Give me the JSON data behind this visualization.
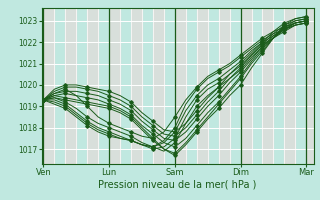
{
  "xlabel": "Pression niveau de la mer( hPa )",
  "bg_color": "#c0e8e0",
  "line_color": "#1a5c1a",
  "ylim": [
    1016.3,
    1023.6
  ],
  "yticks": [
    1017,
    1018,
    1019,
    1020,
    1021,
    1022,
    1023
  ],
  "xtick_labels": [
    "Ven",
    "Lun",
    "Sam",
    "Dim",
    "Mar"
  ],
  "xtick_positions": [
    0,
    36,
    72,
    108,
    144
  ],
  "vline_positions": [
    0,
    36,
    72,
    108,
    144
  ],
  "total_points": 145,
  "series": [
    {
      "start": 0,
      "points": [
        [
          0,
          1019.3
        ],
        [
          6,
          1019.5
        ],
        [
          12,
          1019.4
        ],
        [
          18,
          1019.3
        ],
        [
          24,
          1019.2
        ],
        [
          30,
          1019.1
        ],
        [
          36,
          1019.0
        ],
        [
          42,
          1018.8
        ],
        [
          48,
          1018.5
        ],
        [
          54,
          1018.0
        ],
        [
          60,
          1017.5
        ],
        [
          66,
          1017.0
        ],
        [
          72,
          1016.7
        ],
        [
          78,
          1017.2
        ],
        [
          84,
          1017.8
        ],
        [
          90,
          1018.4
        ],
        [
          96,
          1018.9
        ],
        [
          102,
          1019.5
        ],
        [
          108,
          1020.0
        ],
        [
          114,
          1020.8
        ],
        [
          120,
          1021.5
        ],
        [
          126,
          1022.2
        ],
        [
          132,
          1022.8
        ],
        [
          138,
          1023.0
        ],
        [
          144,
          1023.1
        ]
      ]
    },
    {
      "start": 0,
      "points": [
        [
          0,
          1019.3
        ],
        [
          6,
          1019.4
        ],
        [
          12,
          1019.3
        ],
        [
          18,
          1019.2
        ],
        [
          24,
          1019.1
        ],
        [
          30,
          1019.0
        ],
        [
          36,
          1018.9
        ],
        [
          42,
          1018.7
        ],
        [
          48,
          1018.4
        ],
        [
          54,
          1017.9
        ],
        [
          60,
          1017.4
        ],
        [
          66,
          1017.0
        ],
        [
          72,
          1016.8
        ],
        [
          78,
          1017.3
        ],
        [
          84,
          1017.9
        ],
        [
          90,
          1018.5
        ],
        [
          96,
          1019.1
        ],
        [
          102,
          1019.7
        ],
        [
          108,
          1020.3
        ],
        [
          114,
          1021.0
        ],
        [
          120,
          1021.6
        ],
        [
          126,
          1022.2
        ],
        [
          132,
          1022.7
        ],
        [
          138,
          1022.9
        ],
        [
          144,
          1023.0
        ]
      ]
    },
    {
      "start": 0,
      "points": [
        [
          0,
          1019.3
        ],
        [
          6,
          1019.5
        ],
        [
          12,
          1019.6
        ],
        [
          18,
          1019.5
        ],
        [
          24,
          1019.4
        ],
        [
          30,
          1019.3
        ],
        [
          36,
          1019.1
        ],
        [
          42,
          1018.9
        ],
        [
          48,
          1018.6
        ],
        [
          54,
          1018.1
        ],
        [
          60,
          1017.7
        ],
        [
          66,
          1017.3
        ],
        [
          72,
          1017.1
        ],
        [
          78,
          1017.5
        ],
        [
          84,
          1018.1
        ],
        [
          90,
          1018.7
        ],
        [
          96,
          1019.2
        ],
        [
          102,
          1019.8
        ],
        [
          108,
          1020.4
        ],
        [
          114,
          1021.1
        ],
        [
          120,
          1021.7
        ],
        [
          126,
          1022.2
        ],
        [
          132,
          1022.6
        ],
        [
          138,
          1022.9
        ],
        [
          144,
          1023.0
        ]
      ]
    },
    {
      "start": 0,
      "points": [
        [
          0,
          1019.3
        ],
        [
          6,
          1019.6
        ],
        [
          12,
          1019.7
        ],
        [
          18,
          1019.7
        ],
        [
          24,
          1019.6
        ],
        [
          30,
          1019.5
        ],
        [
          36,
          1019.3
        ],
        [
          42,
          1019.1
        ],
        [
          48,
          1018.8
        ],
        [
          54,
          1018.3
        ],
        [
          60,
          1017.9
        ],
        [
          66,
          1017.5
        ],
        [
          72,
          1017.4
        ],
        [
          78,
          1017.8
        ],
        [
          84,
          1018.4
        ],
        [
          90,
          1019.0
        ],
        [
          96,
          1019.5
        ],
        [
          102,
          1020.1
        ],
        [
          108,
          1020.6
        ],
        [
          114,
          1021.2
        ],
        [
          120,
          1021.8
        ],
        [
          126,
          1022.3
        ],
        [
          132,
          1022.7
        ],
        [
          138,
          1023.0
        ],
        [
          144,
          1023.1
        ]
      ]
    },
    {
      "start": 0,
      "points": [
        [
          0,
          1019.3
        ],
        [
          6,
          1019.7
        ],
        [
          12,
          1019.9
        ],
        [
          18,
          1019.9
        ],
        [
          24,
          1019.8
        ],
        [
          30,
          1019.7
        ],
        [
          36,
          1019.5
        ],
        [
          42,
          1019.3
        ],
        [
          48,
          1019.0
        ],
        [
          54,
          1018.5
        ],
        [
          60,
          1018.1
        ],
        [
          66,
          1017.7
        ],
        [
          72,
          1017.6
        ],
        [
          78,
          1018.0
        ],
        [
          84,
          1018.6
        ],
        [
          90,
          1019.2
        ],
        [
          96,
          1019.7
        ],
        [
          102,
          1020.3
        ],
        [
          108,
          1020.8
        ],
        [
          114,
          1021.4
        ],
        [
          120,
          1021.9
        ],
        [
          126,
          1022.4
        ],
        [
          132,
          1022.8
        ],
        [
          138,
          1023.1
        ],
        [
          144,
          1023.2
        ]
      ]
    },
    {
      "start": 0,
      "points": [
        [
          0,
          1019.3
        ],
        [
          6,
          1019.8
        ],
        [
          12,
          1020.0
        ],
        [
          18,
          1020.0
        ],
        [
          24,
          1019.9
        ],
        [
          30,
          1019.8
        ],
        [
          36,
          1019.7
        ],
        [
          42,
          1019.5
        ],
        [
          48,
          1019.2
        ],
        [
          54,
          1018.7
        ],
        [
          60,
          1018.3
        ],
        [
          66,
          1017.9
        ],
        [
          72,
          1017.8
        ],
        [
          78,
          1018.2
        ],
        [
          84,
          1018.8
        ],
        [
          90,
          1019.4
        ],
        [
          96,
          1019.9
        ],
        [
          102,
          1020.5
        ],
        [
          108,
          1021.0
        ],
        [
          114,
          1021.5
        ],
        [
          120,
          1022.0
        ],
        [
          126,
          1022.5
        ],
        [
          132,
          1022.9
        ],
        [
          138,
          1023.1
        ],
        [
          144,
          1023.2
        ]
      ]
    },
    {
      "start": 0,
      "points": [
        [
          0,
          1019.3
        ],
        [
          6,
          1019.4
        ],
        [
          12,
          1019.2
        ],
        [
          18,
          1018.9
        ],
        [
          24,
          1018.5
        ],
        [
          30,
          1018.2
        ],
        [
          36,
          1018.0
        ],
        [
          42,
          1017.8
        ],
        [
          48,
          1017.6
        ],
        [
          54,
          1017.3
        ],
        [
          60,
          1017.1
        ],
        [
          66,
          1016.9
        ],
        [
          72,
          1017.3
        ],
        [
          78,
          1018.2
        ],
        [
          84,
          1019.0
        ],
        [
          90,
          1019.5
        ],
        [
          96,
          1019.9
        ],
        [
          102,
          1020.3
        ],
        [
          108,
          1020.7
        ],
        [
          114,
          1021.3
        ],
        [
          120,
          1021.8
        ],
        [
          126,
          1022.2
        ],
        [
          132,
          1022.6
        ],
        [
          138,
          1022.9
        ],
        [
          144,
          1023.0
        ]
      ]
    },
    {
      "start": 0,
      "points": [
        [
          0,
          1019.3
        ],
        [
          6,
          1019.3
        ],
        [
          12,
          1019.1
        ],
        [
          18,
          1018.7
        ],
        [
          24,
          1018.3
        ],
        [
          30,
          1018.0
        ],
        [
          36,
          1017.8
        ],
        [
          42,
          1017.6
        ],
        [
          48,
          1017.4
        ],
        [
          54,
          1017.2
        ],
        [
          60,
          1017.0
        ],
        [
          66,
          1017.1
        ],
        [
          72,
          1017.5
        ],
        [
          78,
          1018.5
        ],
        [
          84,
          1019.3
        ],
        [
          90,
          1019.8
        ],
        [
          96,
          1020.1
        ],
        [
          102,
          1020.5
        ],
        [
          108,
          1020.9
        ],
        [
          114,
          1021.4
        ],
        [
          120,
          1021.9
        ],
        [
          126,
          1022.2
        ],
        [
          132,
          1022.5
        ],
        [
          138,
          1022.8
        ],
        [
          144,
          1022.9
        ]
      ]
    },
    {
      "start": 0,
      "points": [
        [
          0,
          1019.3
        ],
        [
          6,
          1019.2
        ],
        [
          12,
          1019.0
        ],
        [
          18,
          1018.6
        ],
        [
          24,
          1018.2
        ],
        [
          30,
          1017.9
        ],
        [
          36,
          1017.7
        ],
        [
          42,
          1017.5
        ],
        [
          48,
          1017.4
        ],
        [
          54,
          1017.2
        ],
        [
          60,
          1017.1
        ],
        [
          66,
          1017.3
        ],
        [
          72,
          1017.8
        ],
        [
          78,
          1018.8
        ],
        [
          84,
          1019.5
        ],
        [
          90,
          1020.0
        ],
        [
          96,
          1020.3
        ],
        [
          102,
          1020.7
        ],
        [
          108,
          1021.1
        ],
        [
          114,
          1021.6
        ],
        [
          120,
          1022.0
        ],
        [
          126,
          1022.3
        ],
        [
          132,
          1022.6
        ],
        [
          138,
          1022.8
        ],
        [
          144,
          1022.9
        ]
      ]
    },
    {
      "start": 0,
      "points": [
        [
          0,
          1019.3
        ],
        [
          6,
          1019.1
        ],
        [
          12,
          1018.9
        ],
        [
          18,
          1018.5
        ],
        [
          24,
          1018.1
        ],
        [
          30,
          1017.8
        ],
        [
          36,
          1017.6
        ],
        [
          42,
          1017.5
        ],
        [
          48,
          1017.4
        ],
        [
          54,
          1017.2
        ],
        [
          60,
          1017.1
        ],
        [
          66,
          1017.4
        ],
        [
          72,
          1018.0
        ],
        [
          78,
          1019.1
        ],
        [
          84,
          1019.8
        ],
        [
          90,
          1020.3
        ],
        [
          96,
          1020.6
        ],
        [
          102,
          1020.9
        ],
        [
          108,
          1021.3
        ],
        [
          114,
          1021.7
        ],
        [
          120,
          1022.1
        ],
        [
          126,
          1022.4
        ],
        [
          132,
          1022.6
        ],
        [
          138,
          1022.8
        ],
        [
          144,
          1022.9
        ]
      ]
    },
    {
      "start": 0,
      "points": [
        [
          0,
          1019.3
        ],
        [
          6,
          1019.6
        ],
        [
          12,
          1019.8
        ],
        [
          18,
          1019.5
        ],
        [
          24,
          1019.0
        ],
        [
          30,
          1018.5
        ],
        [
          36,
          1018.2
        ],
        [
          42,
          1018.0
        ],
        [
          48,
          1017.8
        ],
        [
          54,
          1017.6
        ],
        [
          60,
          1017.5
        ],
        [
          66,
          1017.8
        ],
        [
          72,
          1018.5
        ],
        [
          78,
          1019.3
        ],
        [
          84,
          1019.9
        ],
        [
          90,
          1020.4
        ],
        [
          96,
          1020.7
        ],
        [
          102,
          1021.0
        ],
        [
          108,
          1021.4
        ],
        [
          114,
          1021.8
        ],
        [
          120,
          1022.2
        ],
        [
          126,
          1022.5
        ],
        [
          132,
          1022.7
        ],
        [
          138,
          1022.9
        ],
        [
          144,
          1023.0
        ]
      ]
    }
  ]
}
